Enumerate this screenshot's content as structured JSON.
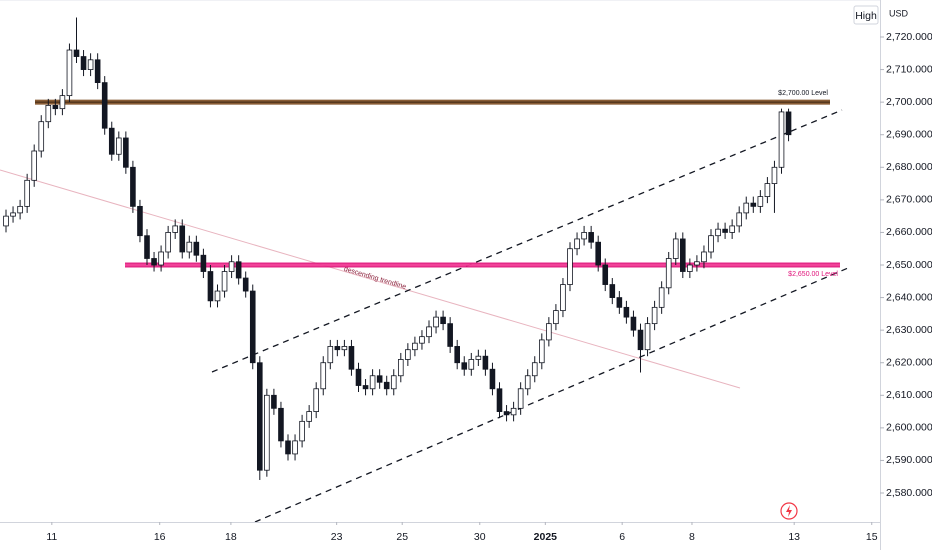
{
  "chart_data": {
    "type": "candlestick",
    "currency": "USD",
    "high_label": "High",
    "low": [
      2660,
      2663,
      2664,
      2666,
      2674,
      2683,
      2692,
      2696,
      2696,
      2700,
      2712,
      2708,
      2708,
      2704,
      2690,
      2682,
      2682,
      2678,
      2666,
      2657,
      2650,
      2648,
      2648,
      2652,
      2658,
      2652,
      2652,
      2651,
      2646,
      2637,
      2637,
      2640,
      2646,
      2644,
      2640,
      2618,
      2584,
      2585,
      2604,
      2594,
      2590,
      2590,
      2594,
      2600,
      2603,
      2610,
      2618,
      2622,
      2622,
      2616,
      2611,
      2610,
      2610,
      2612,
      2610,
      2610,
      2614,
      2619,
      2622,
      2624,
      2626,
      2629,
      2630,
      2623,
      2618,
      2616,
      2616,
      2619,
      2616,
      2610,
      2603,
      2602,
      2602,
      2604,
      2610,
      2614,
      2618,
      2625,
      2630,
      2634,
      2642,
      2653,
      2656,
      2655,
      2648,
      2642,
      2638,
      2635,
      2632,
      2628,
      2617,
      2622,
      2630,
      2635,
      2641,
      2650,
      2646,
      2646,
      2648,
      2649,
      2652,
      2657,
      2658,
      2658,
      2660,
      2664,
      2666,
      2666,
      2669,
      2666,
      2678,
      2688
    ],
    "up_color": "#ffffff",
    "down_color": "#131722",
    "outline_color": "#131722",
    "open": [
      2662,
      2665,
      2666,
      2668,
      2676,
      2685,
      2694,
      2699,
      2698,
      2702,
      2716,
      2714,
      2710,
      2713,
      2706,
      2692,
      2684,
      2689,
      2680,
      2668,
      2659,
      2652,
      2650,
      2654,
      2660,
      2662,
      2654,
      2657,
      2653,
      2648,
      2639,
      2642,
      2648,
      2651,
      2646,
      2642,
      2620,
      2587,
      2610,
      2606,
      2596,
      2592,
      2596,
      2602,
      2605,
      2612,
      2620,
      2625,
      2624,
      2625,
      2618,
      2613,
      2612,
      2616,
      2614,
      2612,
      2616,
      2621,
      2624,
      2626,
      2628,
      2631,
      2634,
      2632,
      2625,
      2620,
      2618,
      2621,
      2622,
      2618,
      2612,
      2605,
      2604,
      2606,
      2612,
      2616,
      2620,
      2627,
      2632,
      2636,
      2644,
      2655,
      2658,
      2660,
      2657,
      2650,
      2644,
      2640,
      2637,
      2634,
      2630,
      2624,
      2632,
      2637,
      2643,
      2652,
      2658,
      2648,
      2650,
      2651,
      2654,
      2659,
      2661,
      2660,
      2662,
      2666,
      2669,
      2668,
      2671,
      2675,
      2680,
      2697
    ],
    "high": [
      2667,
      2668,
      2670,
      2678,
      2687,
      2696,
      2701,
      2701,
      2704,
      2718,
      2726,
      2716,
      2715,
      2715,
      2708,
      2694,
      2691,
      2691,
      2682,
      2670,
      2661,
      2654,
      2656,
      2662,
      2664,
      2664,
      2659,
      2659,
      2655,
      2650,
      2644,
      2650,
      2653,
      2653,
      2648,
      2644,
      2622,
      2612,
      2612,
      2608,
      2598,
      2598,
      2604,
      2607,
      2614,
      2622,
      2627,
      2627,
      2627,
      2627,
      2620,
      2615,
      2618,
      2618,
      2616,
      2618,
      2623,
      2626,
      2628,
      2630,
      2633,
      2636,
      2636,
      2634,
      2627,
      2622,
      2623,
      2624,
      2624,
      2620,
      2614,
      2607,
      2608,
      2614,
      2618,
      2622,
      2629,
      2634,
      2638,
      2646,
      2657,
      2660,
      2662,
      2662,
      2659,
      2652,
      2646,
      2642,
      2639,
      2636,
      2632,
      2634,
      2639,
      2645,
      2654,
      2660,
      2660,
      2652,
      2653,
      2656,
      2661,
      2663,
      2663,
      2664,
      2668,
      2671,
      2671,
      2673,
      2677,
      2682,
      2698,
      2698
    ],
    "close": [
      2665,
      2666,
      2668,
      2676,
      2685,
      2694,
      2699,
      2698,
      2702,
      2716,
      2714,
      2710,
      2713,
      2706,
      2692,
      2684,
      2689,
      2680,
      2668,
      2659,
      2652,
      2650,
      2654,
      2660,
      2662,
      2654,
      2657,
      2653,
      2648,
      2639,
      2642,
      2648,
      2651,
      2646,
      2642,
      2620,
      2587,
      2610,
      2606,
      2596,
      2592,
      2596,
      2602,
      2605,
      2612,
      2620,
      2625,
      2624,
      2625,
      2618,
      2613,
      2612,
      2616,
      2614,
      2612,
      2616,
      2621,
      2624,
      2626,
      2628,
      2631,
      2634,
      2632,
      2625,
      2620,
      2618,
      2621,
      2622,
      2618,
      2612,
      2605,
      2604,
      2606,
      2612,
      2616,
      2620,
      2627,
      2632,
      2636,
      2644,
      2655,
      2658,
      2660,
      2657,
      2650,
      2644,
      2640,
      2637,
      2634,
      2630,
      2624,
      2632,
      2637,
      2643,
      2652,
      2658,
      2648,
      2650,
      2651,
      2654,
      2659,
      2661,
      2660,
      2662,
      2666,
      2669,
      2668,
      2671,
      2675,
      2680,
      2697,
      2690
    ],
    "xticks": [
      {
        "value": 6.5,
        "label": "11"
      },
      {
        "value": 21.8,
        "label": "16"
      },
      {
        "value": 31.9,
        "label": "18"
      },
      {
        "value": 46.9,
        "label": "23"
      },
      {
        "value": 56.2,
        "label": "25"
      },
      {
        "value": 67.2,
        "label": "30"
      },
      {
        "value": 76.5,
        "label": "2025"
      },
      {
        "value": 87.4,
        "label": "6"
      },
      {
        "value": 97.3,
        "label": "8"
      },
      {
        "value": 111.8,
        "label": "13"
      },
      {
        "value": 122.8,
        "label": "15"
      }
    ],
    "ylim": [
      2571.1,
      2731.36
    ],
    "yticks": [
      {
        "value": 2580,
        "label": "2,580.000"
      },
      {
        "value": 2590,
        "label": "2,590.000"
      },
      {
        "value": 2600,
        "label": "2,600.000"
      },
      {
        "value": 2610,
        "label": "2,610.000"
      },
      {
        "value": 2620,
        "label": "2,620.000"
      },
      {
        "value": 2630,
        "label": "2,630.000"
      },
      {
        "value": 2640,
        "label": "2,640.000"
      },
      {
        "value": 2650,
        "label": "2,650.000"
      },
      {
        "value": 2660,
        "label": "2,660.000"
      },
      {
        "value": 2670,
        "label": "2,670.000"
      },
      {
        "value": 2680,
        "label": "2,680.000"
      },
      {
        "value": 2690,
        "label": "2,690.000"
      },
      {
        "value": 2700,
        "label": "2,700.000"
      },
      {
        "value": 2710,
        "label": "2,710.000"
      },
      {
        "value": 2720,
        "label": "2,720.000"
      }
    ],
    "levels": [
      {
        "value": 2700,
        "label": "$2,700.00 Level",
        "color": "#7b4a1f"
      },
      {
        "value": 2650,
        "label": "$2,650.00 Level",
        "color": "#e0137a"
      }
    ],
    "annotation": "descending trendline"
  }
}
